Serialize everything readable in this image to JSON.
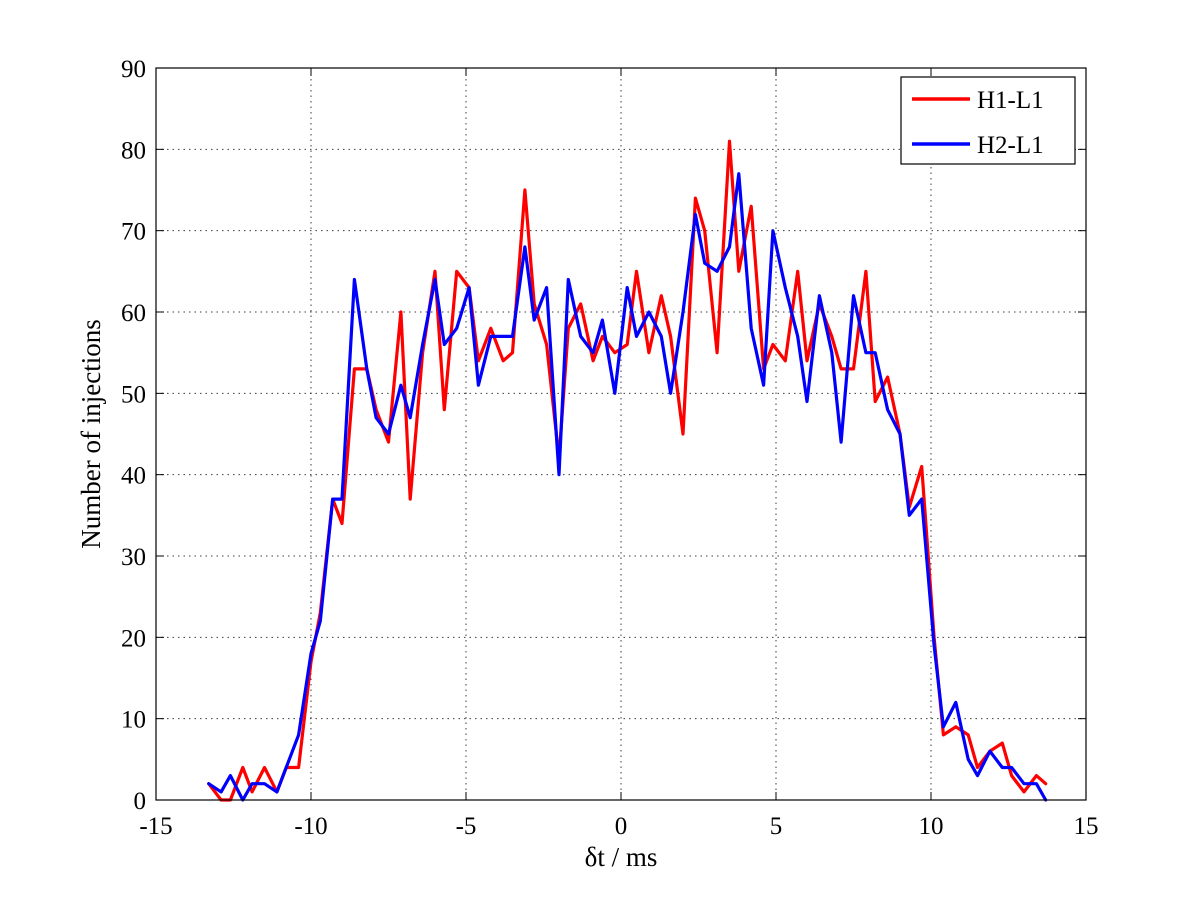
{
  "chart_data": {
    "type": "line",
    "xlabel": "δt / ms",
    "ylabel": "Number of injections",
    "xlim": [
      -15,
      15
    ],
    "ylim": [
      0,
      90
    ],
    "xticks": [
      -15,
      -10,
      -5,
      0,
      5,
      10,
      15
    ],
    "yticks": [
      0,
      10,
      20,
      30,
      40,
      50,
      60,
      70,
      80,
      90
    ],
    "xtick_labels": [
      "-15",
      "-10",
      "-5",
      "0",
      "5",
      "10",
      "15"
    ],
    "ytick_labels": [
      "0",
      "10",
      "20",
      "30",
      "40",
      "50",
      "60",
      "70",
      "80",
      "90"
    ],
    "grid": true,
    "legend_position": "top-right",
    "series": [
      {
        "name": "H1-L1",
        "color": "#ff0000",
        "x": [
          -13.3,
          -12.9,
          -12.6,
          -12.2,
          -11.9,
          -11.5,
          -11.1,
          -10.8,
          -10.4,
          -10.0,
          -9.7,
          -9.3,
          -9.0,
          -8.6,
          -8.2,
          -7.9,
          -7.5,
          -7.1,
          -6.8,
          -6.4,
          -6.0,
          -5.7,
          -5.3,
          -4.9,
          -4.6,
          -4.2,
          -3.8,
          -3.5,
          -3.1,
          -2.8,
          -2.4,
          -2.0,
          -1.7,
          -1.3,
          -0.9,
          -0.6,
          -0.2,
          0.2,
          0.5,
          0.9,
          1.3,
          1.6,
          2.0,
          2.4,
          2.7,
          3.1,
          3.5,
          3.8,
          4.2,
          4.6,
          4.9,
          5.3,
          5.7,
          6.0,
          6.4,
          6.8,
          7.1,
          7.5,
          7.9,
          8.2,
          8.6,
          9.0,
          9.3,
          9.7,
          10.1,
          10.4,
          10.8,
          11.2,
          11.5,
          11.9,
          12.3,
          12.6,
          13.0,
          13.4,
          13.7
        ],
        "y": [
          2,
          0,
          0,
          4,
          1,
          4,
          1,
          4,
          4,
          17,
          23,
          37,
          34,
          53,
          53,
          48,
          44,
          60,
          37,
          55,
          65,
          48,
          65,
          63,
          54,
          58,
          54,
          55,
          75,
          61,
          56,
          42,
          58,
          61,
          54,
          57,
          55,
          56,
          65,
          55,
          62,
          57,
          45,
          74,
          70,
          55,
          81,
          65,
          73,
          53,
          56,
          54,
          65,
          54,
          61,
          57,
          53,
          53,
          65,
          49,
          52,
          45,
          36,
          41,
          20,
          8,
          9,
          8,
          4,
          6,
          7,
          3,
          1,
          3,
          2
        ]
      },
      {
        "name": "H2-L1",
        "color": "#0000ff",
        "x": [
          -13.3,
          -12.9,
          -12.6,
          -12.2,
          -11.9,
          -11.5,
          -11.1,
          -10.8,
          -10.4,
          -10.0,
          -9.7,
          -9.3,
          -9.0,
          -8.6,
          -8.2,
          -7.9,
          -7.5,
          -7.1,
          -6.8,
          -6.4,
          -6.0,
          -5.7,
          -5.3,
          -4.9,
          -4.6,
          -4.2,
          -3.8,
          -3.5,
          -3.1,
          -2.8,
          -2.4,
          -2.0,
          -1.7,
          -1.3,
          -0.9,
          -0.6,
          -0.2,
          0.2,
          0.5,
          0.9,
          1.3,
          1.6,
          2.0,
          2.4,
          2.7,
          3.1,
          3.5,
          3.8,
          4.2,
          4.6,
          4.9,
          5.3,
          5.7,
          6.0,
          6.4,
          6.8,
          7.1,
          7.5,
          7.9,
          8.2,
          8.6,
          9.0,
          9.3,
          9.7,
          10.1,
          10.4,
          10.8,
          11.2,
          11.5,
          11.9,
          12.3,
          12.6,
          13.0,
          13.4,
          13.7
        ],
        "y": [
          2,
          1,
          3,
          0,
          2,
          2,
          1,
          4,
          8,
          18,
          22,
          37,
          37,
          64,
          53,
          47,
          45,
          51,
          47,
          56,
          64,
          56,
          58,
          63,
          51,
          57,
          57,
          57,
          68,
          59,
          63,
          40,
          64,
          57,
          55,
          59,
          50,
          63,
          57,
          60,
          57,
          50,
          60,
          72,
          66,
          65,
          68,
          77,
          58,
          51,
          70,
          63,
          57,
          49,
          62,
          55,
          44,
          62,
          55,
          55,
          48,
          45,
          35,
          37,
          19,
          9,
          12,
          5,
          3,
          6,
          4,
          4,
          2,
          2,
          0
        ]
      }
    ]
  }
}
